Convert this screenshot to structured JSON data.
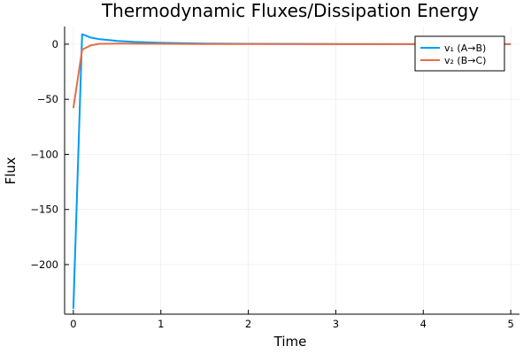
{
  "chart_data": {
    "type": "line",
    "title": "Thermodynamic Fluxes/Dissipation Energy",
    "xlabel": "Time",
    "ylabel": "Flux",
    "xlim": [
      -0.1,
      5.1
    ],
    "ylim": [
      -245,
      16
    ],
    "x_ticks": [
      0,
      1,
      2,
      3,
      4,
      5
    ],
    "x_tick_labels": [
      "0",
      "1",
      "2",
      "3",
      "4",
      "5"
    ],
    "y_ticks": [
      0,
      -50,
      -100,
      -150,
      -200
    ],
    "y_tick_labels": [
      "0",
      "−50",
      "−100",
      "−150",
      "−200"
    ],
    "grid": true,
    "legend_position": "top-right",
    "series": [
      {
        "name": "v₁ (A→B)",
        "color": "#009AFA",
        "x": [
          0,
          0.1,
          0.2,
          0.3,
          0.5,
          0.7,
          1,
          1.5,
          2,
          3,
          4,
          5
        ],
        "y": [
          -240,
          9,
          6,
          4.5,
          3,
          2,
          1.2,
          0.6,
          0.3,
          0.1,
          0.05,
          0.02
        ]
      },
      {
        "name": "v₂ (B→C)",
        "color": "#E26F46",
        "x": [
          0,
          0.1,
          0.2,
          0.3,
          0.5,
          0.7,
          1,
          1.5,
          2,
          3,
          4,
          5
        ],
        "y": [
          -58,
          -5,
          -1,
          0.3,
          0.5,
          0.4,
          0.3,
          0.2,
          0.1,
          0.05,
          0.02,
          0.01
        ]
      }
    ]
  }
}
